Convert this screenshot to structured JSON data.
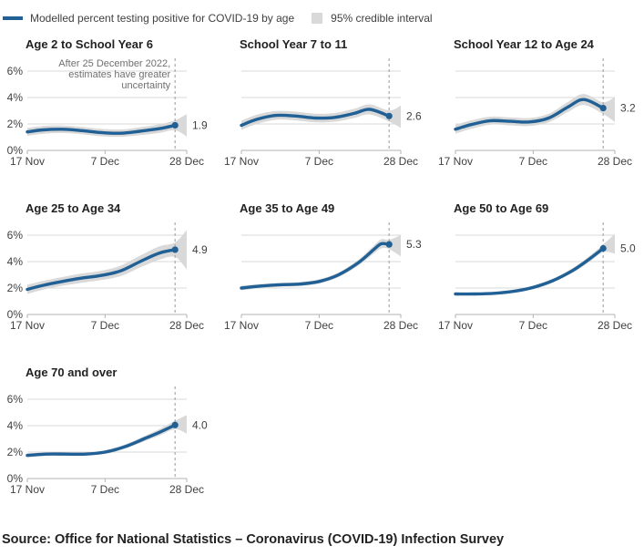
{
  "legend": {
    "line_label": "Modelled percent testing positive for COVID-19 by age",
    "band_label": "95% credible interval"
  },
  "source": "Source: Office for National Statistics – Coronavirus (COVID-19) Infection Survey",
  "colors": {
    "line": "#206095",
    "band": "#d9d9d9",
    "grid": "#d9d9d9",
    "axis": "#b3b3b3",
    "dashed": "#a9a9a9",
    "title": "#222222",
    "label": "#414042",
    "annotation": "#6f6f6f"
  },
  "chart_data": {
    "type": "line",
    "title": "Modelled percent testing positive for COVID-19 by age",
    "x_domain_days": 41,
    "x_ticks": [
      {
        "label": "17 Nov",
        "day": 0
      },
      {
        "label": "7 Dec",
        "day": 20
      },
      {
        "label": "28 Dec",
        "day": 41
      }
    ],
    "dashed_line_day": 38,
    "y_ticks": [
      {
        "label": "0%",
        "value": 0
      },
      {
        "label": "2%",
        "value": 2
      },
      {
        "label": "4%",
        "value": 4
      },
      {
        "label": "6%",
        "value": 6
      }
    ],
    "ylim": [
      0,
      7.2
    ],
    "legend_position": "top",
    "grid": "horizontal-only",
    "panels": [
      {
        "title": "Age 2 to School Year 6",
        "end_label": "1.9",
        "show_y_axis": true,
        "annotation": [
          "After 25 December 2022,",
          "estimates have greater",
          "uncertainty"
        ],
        "days": [
          0,
          4,
          9,
          14,
          19,
          24,
          29,
          34,
          38
        ],
        "values": [
          1.4,
          1.55,
          1.6,
          1.5,
          1.35,
          1.3,
          1.45,
          1.65,
          1.9
        ],
        "ci": [
          0.3,
          0.3,
          0.28,
          0.28,
          0.28,
          0.28,
          0.3,
          0.32,
          0.38
        ],
        "ext": {
          "day": 41,
          "value": 1.9,
          "ci": 0.85
        }
      },
      {
        "title": "School Year 7 to 11",
        "end_label": "2.6",
        "show_y_axis": false,
        "days": [
          0,
          4,
          9,
          14,
          19,
          24,
          29,
          33,
          38
        ],
        "values": [
          1.9,
          2.35,
          2.65,
          2.6,
          2.45,
          2.5,
          2.8,
          3.1,
          2.6
        ],
        "ci": [
          0.35,
          0.35,
          0.33,
          0.33,
          0.33,
          0.33,
          0.35,
          0.38,
          0.42
        ],
        "ext": {
          "day": 41,
          "value": 2.55,
          "ci": 0.85
        }
      },
      {
        "title": "School Year 12 to Age 24",
        "end_label": "3.2",
        "show_y_axis": false,
        "days": [
          0,
          4,
          9,
          14,
          19,
          24,
          29,
          33,
          38
        ],
        "values": [
          1.6,
          1.95,
          2.25,
          2.2,
          2.15,
          2.45,
          3.3,
          3.85,
          3.2
        ],
        "ci": [
          0.33,
          0.32,
          0.3,
          0.3,
          0.3,
          0.32,
          0.38,
          0.42,
          0.45
        ],
        "ext": {
          "day": 41,
          "value": 3.1,
          "ci": 0.95
        }
      },
      {
        "title": "Age 25 to Age 34",
        "end_label": "4.9",
        "show_y_axis": true,
        "days": [
          0,
          4,
          9,
          14,
          19,
          24,
          29,
          34,
          38
        ],
        "values": [
          1.9,
          2.2,
          2.5,
          2.75,
          2.95,
          3.3,
          4.0,
          4.65,
          4.9
        ],
        "ci": [
          0.35,
          0.33,
          0.33,
          0.35,
          0.35,
          0.4,
          0.45,
          0.5,
          0.55
        ],
        "ext": {
          "day": 41,
          "value": 4.9,
          "ci": 1.5
        }
      },
      {
        "title": "Age 35 to Age 49",
        "end_label": "5.3",
        "show_y_axis": false,
        "days": [
          0,
          5,
          10,
          15,
          20,
          25,
          30,
          34,
          36,
          38
        ],
        "values": [
          2.0,
          2.15,
          2.25,
          2.3,
          2.5,
          3.0,
          3.9,
          4.9,
          5.35,
          5.3
        ],
        "ci": [
          0.18,
          0.16,
          0.15,
          0.15,
          0.16,
          0.18,
          0.22,
          0.3,
          0.35,
          0.35
        ],
        "ext": {
          "day": 41,
          "value": 5.2,
          "ci": 0.8
        }
      },
      {
        "title": "Age 50 to Age 69",
        "end_label": "5.0",
        "show_y_axis": false,
        "days": [
          0,
          5,
          10,
          15,
          20,
          25,
          30,
          34,
          38
        ],
        "values": [
          1.55,
          1.55,
          1.6,
          1.75,
          2.05,
          2.55,
          3.3,
          4.1,
          5.0
        ],
        "ci": [
          0.12,
          0.1,
          0.1,
          0.1,
          0.12,
          0.14,
          0.18,
          0.22,
          0.3
        ],
        "ext": {
          "day": 41,
          "value": 5.35,
          "ci": 0.75
        }
      },
      {
        "title": "Age 70 and over",
        "end_label": "4.0",
        "show_y_axis": true,
        "days": [
          0,
          5,
          10,
          15,
          20,
          25,
          30,
          34,
          38
        ],
        "values": [
          1.75,
          1.85,
          1.85,
          1.85,
          2.0,
          2.4,
          3.0,
          3.5,
          4.05
        ],
        "ci": [
          0.15,
          0.13,
          0.13,
          0.13,
          0.14,
          0.16,
          0.2,
          0.25,
          0.32
        ],
        "ext": {
          "day": 41,
          "value": 4.1,
          "ci": 0.7
        }
      }
    ]
  }
}
